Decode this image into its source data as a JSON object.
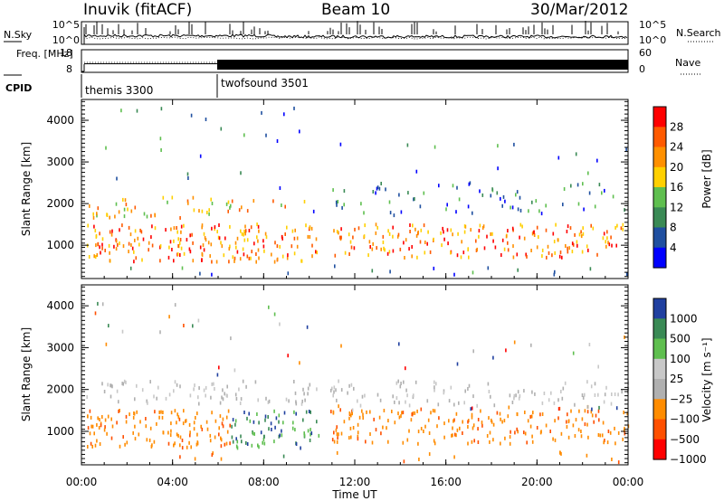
{
  "header": {
    "station": "Inuvik (fitACF)",
    "beam": "Beam 10",
    "date": "30/Mar/2012"
  },
  "colors": {
    "power_scale": [
      "#0000ff",
      "#1f4fa0",
      "#3a8a55",
      "#5fbf4f",
      "#ffd000",
      "#ff9000",
      "#ff5a00",
      "#ff0000"
    ],
    "velocity_scale": [
      "#ff0000",
      "#ff5000",
      "#ff8c00",
      "#b0b0b0",
      "#c8c8c8",
      "#5fbf4f",
      "#3a8a55",
      "#2040a0"
    ]
  },
  "chart_data": [
    {
      "type": "line",
      "title": "N.Sky / N.Search",
      "ylabel_left": "N.Sky",
      "ylabel_right": "N.Search",
      "left_ticks": [
        "10^5",
        "10^0"
      ],
      "right_ticks": [
        "10^5",
        "10^0"
      ],
      "x": [
        "00:00",
        "04:00",
        "08:00",
        "12:00",
        "16:00",
        "20:00",
        "00:00"
      ]
    },
    {
      "type": "line",
      "title": "Freq. / Nave",
      "ylabel_left": "Freq. [MHz]",
      "ylabel_right": "Nave",
      "left_ticks": [
        "18",
        "8"
      ],
      "right_ticks": [
        "60",
        "0"
      ]
    },
    {
      "type": "table",
      "title": "CPID",
      "label": "CPID",
      "programs": [
        {
          "name": "themis 3300",
          "start": "00:00",
          "end": "06:00"
        },
        {
          "name": "twofsound 3501",
          "start": "06:00",
          "end": "24:00"
        }
      ]
    },
    {
      "type": "heatmap",
      "ylabel": "Slant Range [km]",
      "y_ticks": [
        "1000",
        "2000",
        "3000",
        "4000"
      ],
      "ylim": [
        200,
        4500
      ],
      "colorbar_label": "Power [dB]",
      "colorbar_ticks": [
        "4",
        "8",
        "12",
        "16",
        "20",
        "24",
        "28"
      ]
    },
    {
      "type": "heatmap",
      "ylabel": "Slant Range [km]",
      "y_ticks": [
        "1000",
        "2000",
        "3000",
        "4000"
      ],
      "ylim": [
        200,
        4500
      ],
      "colorbar_label": "Velocity [m s⁻¹]",
      "colorbar_ticks": [
        "1000",
        "500",
        "100",
        "25",
        "−25",
        "−100",
        "−500",
        "−1000"
      ],
      "xlabel": "Time UT",
      "x_ticks": [
        "00:00",
        "04:00",
        "08:00",
        "12:00",
        "16:00",
        "20:00",
        "00:00"
      ]
    }
  ]
}
